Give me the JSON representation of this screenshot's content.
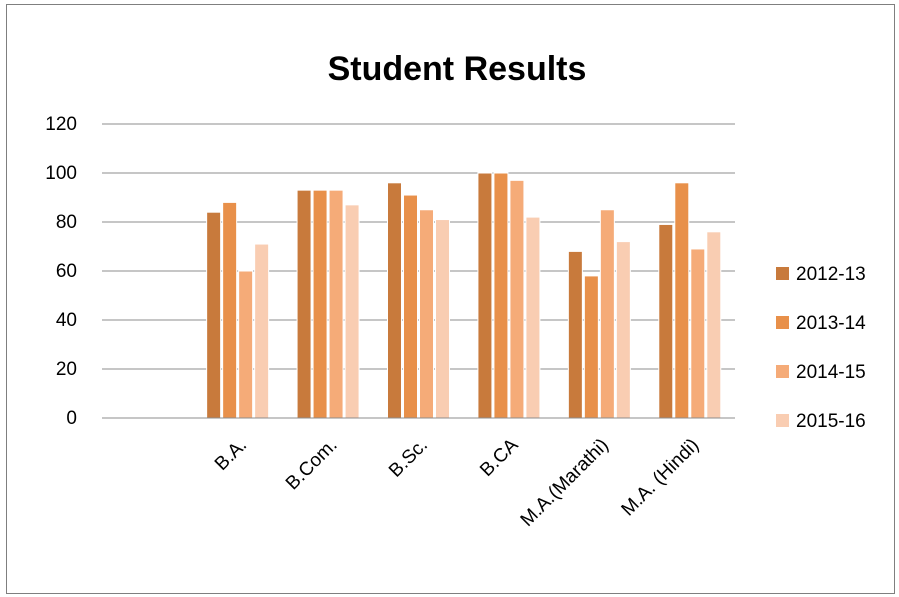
{
  "chart_data": {
    "type": "bar",
    "title": "Student Results",
    "categories": [
      "B.A.",
      "B.Com.",
      "B.Sc.",
      "B.CA",
      "M.A.(Marathi)",
      "M.A. (Hindi)"
    ],
    "series": [
      {
        "name": "2012-13",
        "color": "#c87a3c",
        "values": [
          84,
          93,
          96,
          100,
          68,
          79
        ]
      },
      {
        "name": "2013-14",
        "color": "#e8904a",
        "values": [
          88,
          93,
          91,
          100,
          58,
          96
        ]
      },
      {
        "name": "2014-15",
        "color": "#f5ab78",
        "values": [
          60,
          93,
          85,
          97,
          85,
          69
        ]
      },
      {
        "name": "2015-16",
        "color": "#f9cdb2",
        "values": [
          71,
          87,
          81,
          82,
          72,
          76
        ]
      }
    ],
    "ylim": [
      0,
      120
    ],
    "yticks": [
      0,
      20,
      40,
      60,
      80,
      100,
      120
    ],
    "grid": true,
    "legend_position": "right",
    "xlabel": "",
    "ylabel": ""
  }
}
